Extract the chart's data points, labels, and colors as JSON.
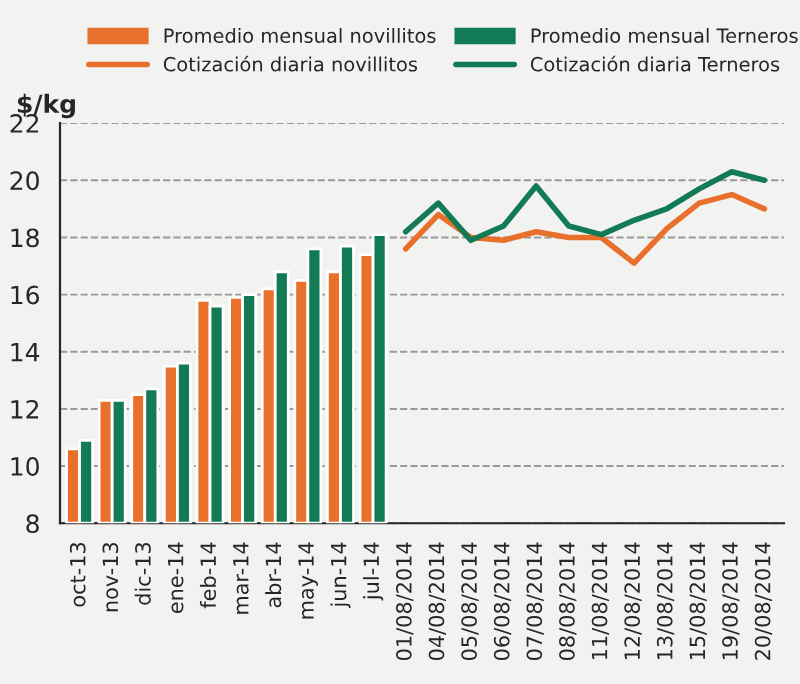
{
  "chart_data": {
    "type": "bar",
    "ylabel": "$/kg",
    "categories": [
      "oct-13",
      "nov-13",
      "dic-13",
      "ene-14",
      "feb-14",
      "mar-14",
      "abr-14",
      "may-14",
      "jun-14",
      "jul-14",
      "01/08/2014",
      "04/08/2014",
      "05/08/2014",
      "06/08/2014",
      "07/08/2014",
      "08/08/2014",
      "11/08/2014",
      "12/08/2014",
      "13/08/2014",
      "15/08/2014",
      "19/08/2014",
      "20/08/2014"
    ],
    "series": [
      {
        "name": "Promedio mensual novillitos",
        "color": "#e8702a",
        "values": [
          10.6,
          12.3,
          12.5,
          13.5,
          15.8,
          15.9,
          16.2,
          16.5,
          16.8,
          17.4,
          null,
          null,
          null,
          null,
          null,
          null,
          null,
          null,
          null,
          null,
          null,
          null
        ]
      },
      {
        "name": "Promedio mensual Terneros",
        "color": "#127a55",
        "values": [
          10.9,
          12.3,
          12.7,
          13.6,
          15.6,
          16.0,
          16.8,
          17.6,
          17.7,
          18.1,
          null,
          null,
          null,
          null,
          null,
          null,
          null,
          null,
          null,
          null,
          null,
          null
        ]
      },
      {
        "name": "Cotización diaria novillitos",
        "type": "line",
        "color": "#e8702a",
        "values": [
          null,
          null,
          null,
          null,
          null,
          null,
          null,
          null,
          null,
          null,
          17.6,
          18.8,
          18.0,
          17.9,
          18.2,
          18.0,
          18.0,
          17.1,
          18.3,
          19.2,
          19.5,
          19.0
        ]
      },
      {
        "name": "Cotización diaria Terneros",
        "type": "line",
        "color": "#127a55",
        "values": [
          null,
          null,
          null,
          null,
          null,
          null,
          null,
          null,
          null,
          null,
          18.2,
          19.2,
          17.9,
          18.4,
          19.8,
          18.4,
          18.1,
          18.6,
          19.0,
          19.7,
          20.3,
          20.0
        ]
      }
    ],
    "ylim": [
      8,
      22
    ],
    "yticks": [
      8,
      10,
      12,
      14,
      16,
      18,
      20,
      22
    ],
    "grid": "y",
    "legend": "top",
    "line_style": "solid",
    "marker": "none"
  }
}
